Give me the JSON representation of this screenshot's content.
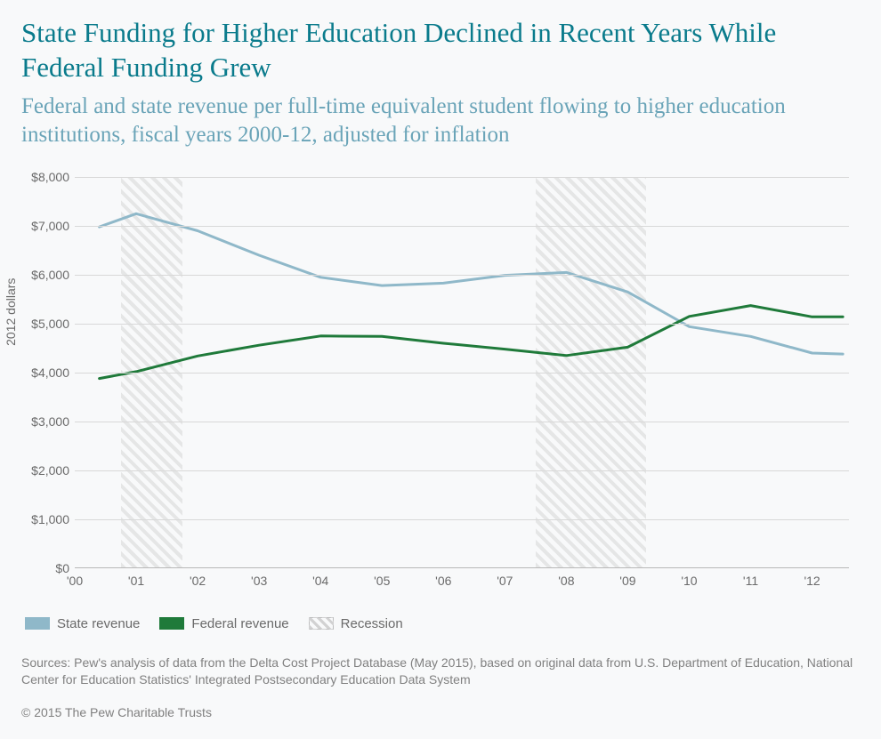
{
  "title": "State Funding for Higher Education Declined in Recent Years While Federal Funding Grew",
  "subtitle": "Federal and state revenue per full-time equivalent student flowing to higher education institutions, fiscal years 2000-12, adjusted for inflation",
  "chart": {
    "type": "line",
    "ylabel": "2012 dollars",
    "ylim": [
      0,
      8000
    ],
    "ytick_step": 1000,
    "ytick_labels": [
      "$0",
      "$1,000",
      "$2,000",
      "$3,000",
      "$4,000",
      "$5,000",
      "$6,000",
      "$7,000",
      "$8,000"
    ],
    "x_categories": [
      "'00",
      "'01",
      "'02",
      "'03",
      "'04",
      "'05",
      "'06",
      "'07",
      "'08",
      "'09",
      "'10",
      "'11",
      "'12"
    ],
    "x_domain_min": 0.0,
    "x_domain_max": 12.6,
    "recessions": [
      {
        "x_start": 0.75,
        "x_end": 1.75
      },
      {
        "x_start": 7.5,
        "x_end": 9.3
      }
    ],
    "series": [
      {
        "name": "State revenue",
        "color": "#8fb8c9",
        "stroke_width": 3,
        "x": [
          0.4,
          1,
          2,
          3,
          4,
          5,
          6,
          7,
          8,
          9,
          10,
          11,
          12,
          12.5
        ],
        "y": [
          6980,
          7250,
          6900,
          6400,
          5950,
          5780,
          5830,
          5990,
          6050,
          5650,
          4940,
          4740,
          4400,
          4380
        ]
      },
      {
        "name": "Federal revenue",
        "color": "#1f7a3a",
        "stroke_width": 3,
        "x": [
          0.4,
          1,
          2,
          3,
          4,
          5,
          6,
          7,
          8,
          9,
          10,
          11,
          12,
          12.5
        ],
        "y": [
          3880,
          4020,
          4340,
          4560,
          4750,
          4740,
          4600,
          4480,
          4350,
          4520,
          5150,
          5370,
          5140,
          5140
        ]
      }
    ],
    "grid_color": "#d8d8d8",
    "axis_color": "#b8b8b8",
    "background_color": "#f8f9fa",
    "tick_font_size": 14,
    "tick_color": "#6a6a6a",
    "label_font_size": 14
  },
  "legend": {
    "items": [
      {
        "label": "State revenue",
        "type": "solid",
        "color": "#8fb8c9"
      },
      {
        "label": "Federal revenue",
        "type": "solid",
        "color": "#1f7a3a"
      },
      {
        "label": "Recession",
        "type": "hatched"
      }
    ]
  },
  "sources": "Sources: Pew's analysis of data from the Delta Cost Project Database (May 2015), based on original data from U.S. Department of Education, National Center for Education Statistics' Integrated Postsecondary Education Data System",
  "copyright": "© 2015 The Pew Charitable Trusts"
}
